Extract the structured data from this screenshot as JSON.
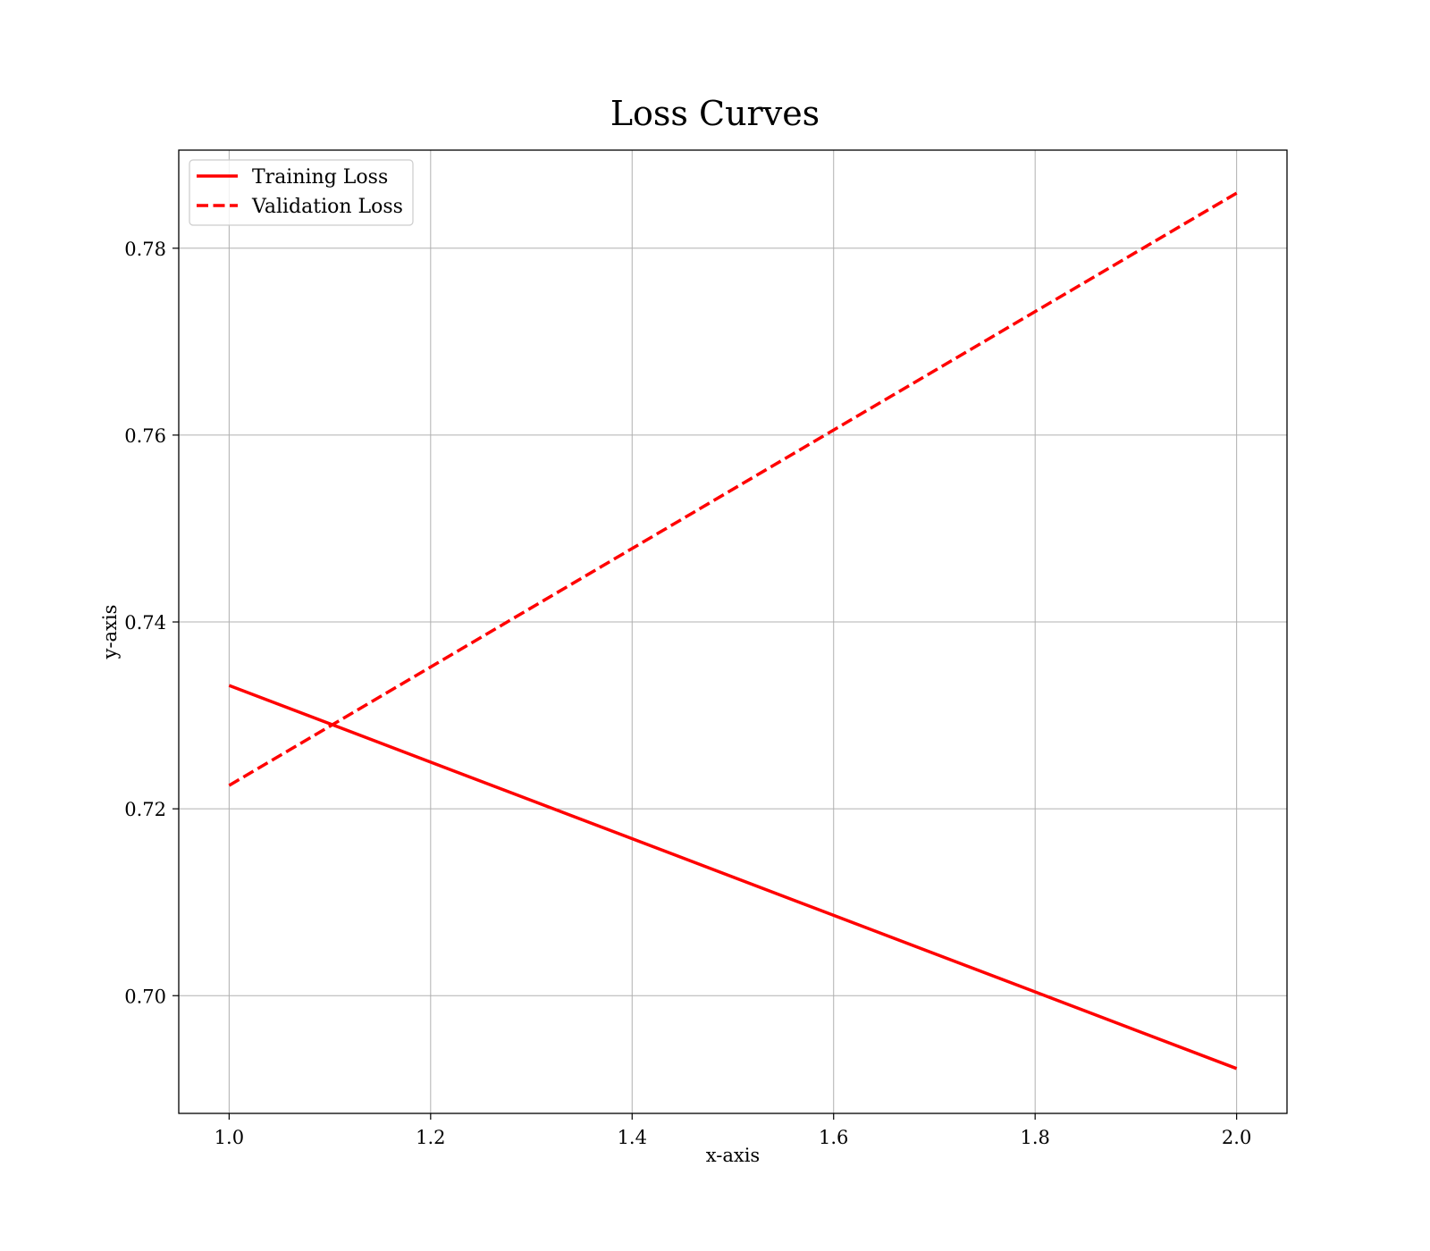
{
  "chart_data": {
    "type": "line",
    "title": "Loss Curves",
    "xlabel": "x-axis",
    "ylabel": "y-axis",
    "xlim": [
      0.95,
      2.05
    ],
    "ylim": [
      0.6874,
      0.7905
    ],
    "xticks": [
      1.0,
      1.2,
      1.4,
      1.6,
      1.8,
      2.0
    ],
    "xtick_labels": [
      "1.0",
      "1.2",
      "1.4",
      "1.6",
      "1.8",
      "2.0"
    ],
    "yticks": [
      0.7,
      0.72,
      0.74,
      0.76,
      0.78
    ],
    "ytick_labels": [
      "0.70",
      "0.72",
      "0.74",
      "0.76",
      "0.78"
    ],
    "grid": true,
    "legend_position": "top-left",
    "series": [
      {
        "name": "Training Loss",
        "x": [
          1.0,
          2.0
        ],
        "y": [
          0.7332,
          0.6922
        ],
        "color": "#ff0000",
        "line_style": "solid"
      },
      {
        "name": "Validation Loss",
        "x": [
          1.0,
          2.0
        ],
        "y": [
          0.7225,
          0.7859
        ],
        "color": "#ff0000",
        "line_style": "dashed"
      }
    ]
  }
}
